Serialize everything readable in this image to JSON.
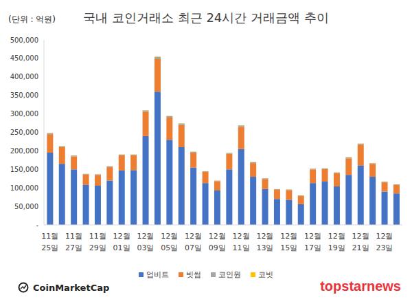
{
  "chart_data": {
    "type": "bar",
    "title": "국내 코인거래소 최근 24시간 거래금액 추이",
    "subtitle": "(단위 : 억원)",
    "annotations": [
      "CoinMarketCap",
      "topstarnews"
    ],
    "stacked": true,
    "grid": false,
    "legend": "bottom",
    "categories": [
      "11월 25일",
      null,
      "11월 27일",
      null,
      "11월 29일",
      null,
      "12월 01일",
      null,
      "12월 03일",
      null,
      "12월 05일",
      null,
      "12월 07일",
      null,
      "12월 09일",
      null,
      "12월 11일",
      null,
      "12월 13일",
      null,
      "12월 15일",
      null,
      "12월 17일",
      null,
      "12월 19일",
      null,
      "12월 21일",
      null,
      "12월 23일",
      null
    ],
    "ylim": [
      0,
      500000
    ],
    "yticks": [
      {
        "value": 0,
        "label": "-"
      },
      {
        "value": 50000,
        "label": "50,000"
      },
      {
        "value": 100000,
        "label": "100,000"
      },
      {
        "value": 150000,
        "label": "150,000"
      },
      {
        "value": 200000,
        "label": "200,000"
      },
      {
        "value": 250000,
        "label": "250,000"
      },
      {
        "value": 300000,
        "label": "300,000"
      },
      {
        "value": 350000,
        "label": "350,000"
      },
      {
        "value": 400000,
        "label": "400,000"
      },
      {
        "value": 450000,
        "label": "450,000"
      },
      {
        "value": 500000,
        "label": "500,000"
      }
    ],
    "series": [
      {
        "name": "업비트",
        "color": "#4472c4",
        "values": [
          195000,
          165000,
          150000,
          108000,
          106000,
          120000,
          147000,
          148000,
          240000,
          360000,
          230000,
          210000,
          155000,
          113000,
          93000,
          150000,
          205000,
          130000,
          97000,
          70000,
          68000,
          56000,
          113000,
          117000,
          104000,
          135000,
          160000,
          130000,
          90000,
          85000
        ]
      },
      {
        "name": "빗썸",
        "color": "#ed7d31",
        "values": [
          50000,
          45000,
          35000,
          28000,
          29000,
          36000,
          41000,
          40000,
          66000,
          88000,
          60000,
          60000,
          40000,
          30000,
          25000,
          42000,
          60000,
          37000,
          27000,
          25000,
          26000,
          22000,
          37000,
          34000,
          36000,
          45000,
          57000,
          35000,
          25000,
          23000
        ]
      },
      {
        "name": "코인원",
        "color": "#a5a5a5",
        "values": [
          3000,
          2500,
          2500,
          1800,
          1800,
          2000,
          2000,
          2000,
          3500,
          6000,
          4000,
          4000,
          2500,
          1800,
          1600,
          2500,
          4000,
          2500,
          2000,
          1600,
          1600,
          1500,
          1800,
          1800,
          1800,
          2500,
          2500,
          1800,
          1600,
          1500
        ]
      },
      {
        "name": "코빗",
        "color": "#ffc000",
        "values": [
          500,
          400,
          400,
          300,
          300,
          300,
          400,
          400,
          600,
          1000,
          600,
          600,
          400,
          300,
          300,
          400,
          600,
          400,
          300,
          300,
          300,
          300,
          300,
          300,
          300,
          400,
          400,
          300,
          300,
          300
        ]
      }
    ]
  }
}
